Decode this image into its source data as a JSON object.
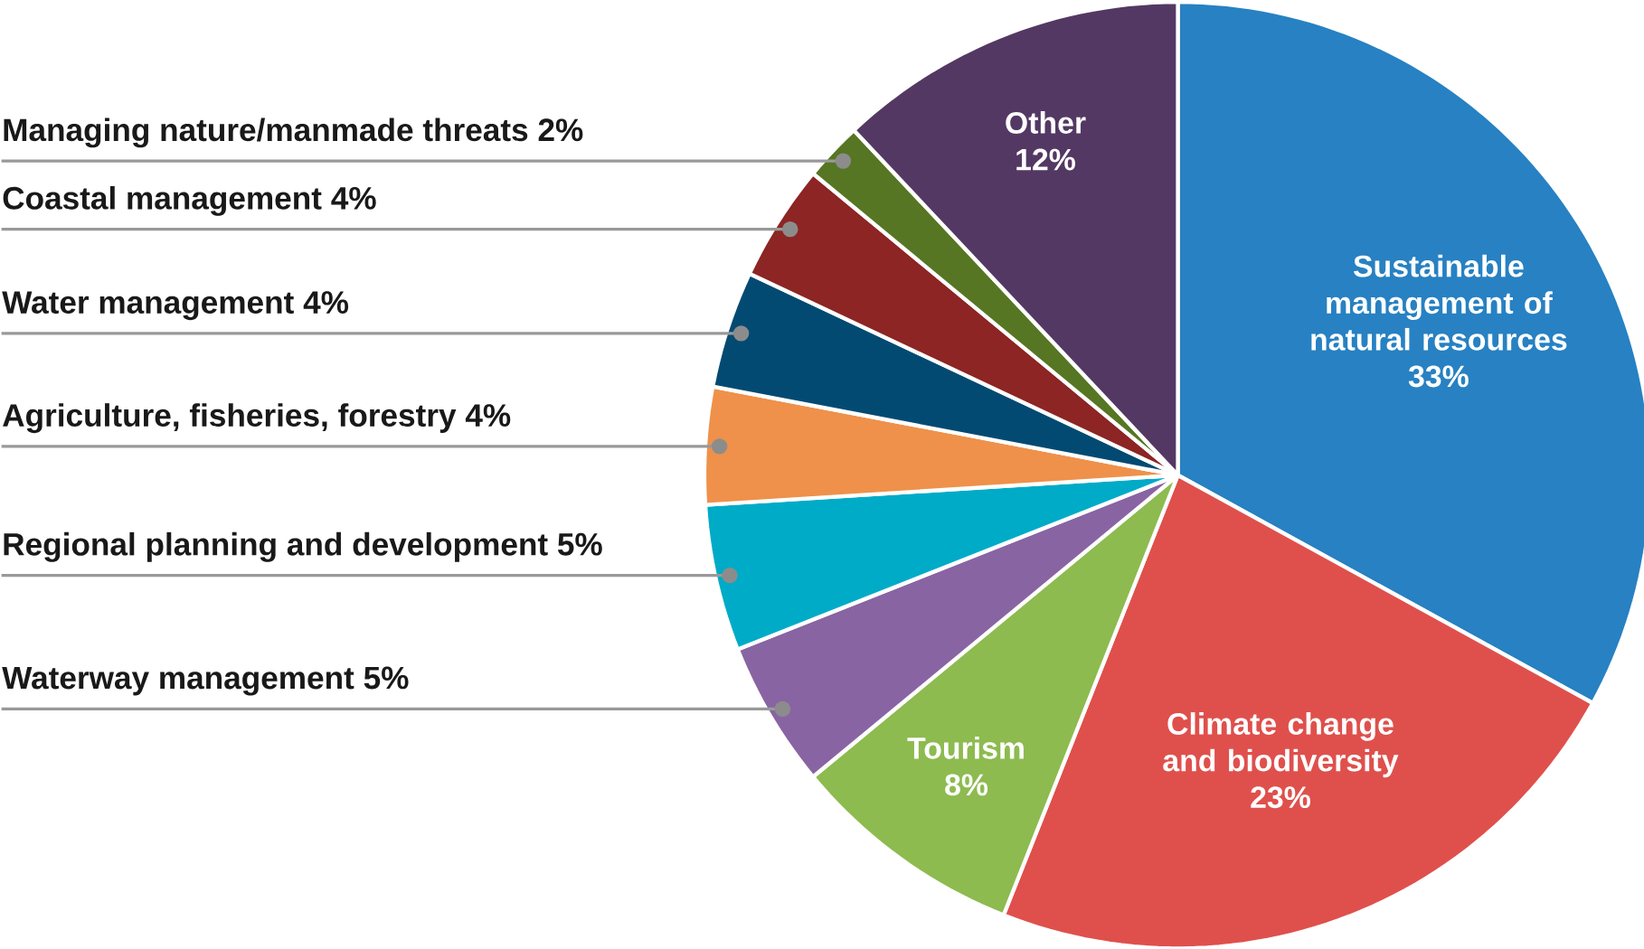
{
  "chart_data": {
    "type": "pie",
    "categories": [
      "Sustainable management of natural resources",
      "Climate change and biodiversity",
      "Tourism",
      "Waterway management",
      "Regional planning and development",
      "Agriculture, fisheries, forestry",
      "Water management",
      "Coastal management",
      "Managing nature/manmade threats",
      "Other"
    ],
    "values": [
      33,
      23,
      8,
      5,
      5,
      4,
      4,
      4,
      2,
      12
    ],
    "value_labels": [
      "33%",
      "23%",
      "8%",
      "5%",
      "5%",
      "4%",
      "4%",
      "4%",
      "2%",
      "12%"
    ],
    "colors": [
      "#2781c2",
      "#df504c",
      "#8dbb4f",
      "#8964a2",
      "#00abc7",
      "#ef914a",
      "#034a72",
      "#8c2524",
      "#567623",
      "#533863"
    ]
  }
}
